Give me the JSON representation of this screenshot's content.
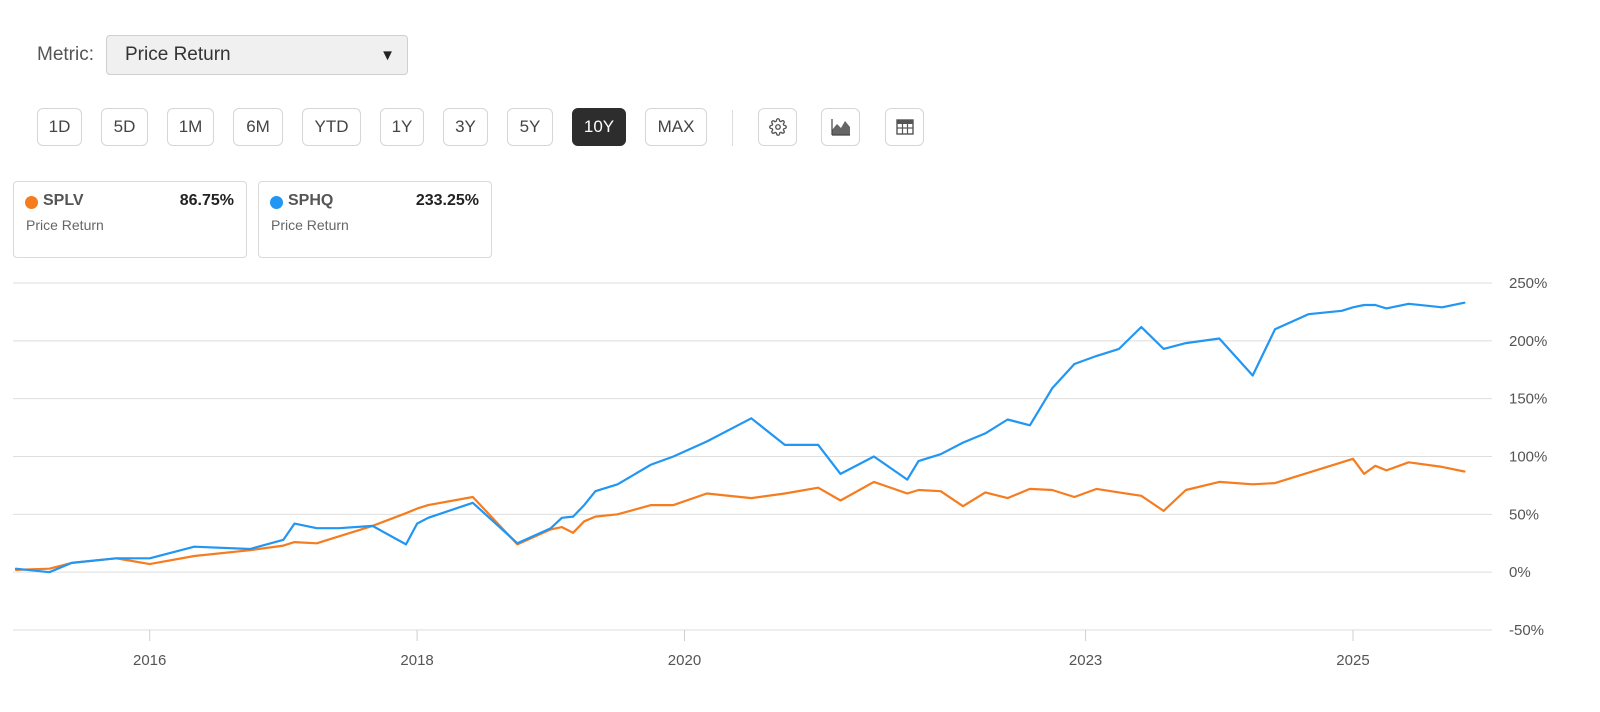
{
  "metric": {
    "label": "Metric:",
    "selected": "Price Return"
  },
  "ranges": [
    "1D",
    "5D",
    "1M",
    "6M",
    "YTD",
    "1Y",
    "3Y",
    "5Y",
    "10Y",
    "MAX"
  ],
  "active_range": "10Y",
  "tool_icons": [
    "gear-icon",
    "area-chart-icon",
    "table-icon"
  ],
  "cards": [
    {
      "ticker": "SPLV",
      "value": "86.75%",
      "metric": "Price Return",
      "color": "#f57c1f"
    },
    {
      "ticker": "SPHQ",
      "value": "233.25%",
      "metric": "Price Return",
      "color": "#2196f3"
    }
  ],
  "chart_data": {
    "type": "line",
    "title": "",
    "xlabel": "",
    "ylabel": "",
    "x_ticks": [
      "2016",
      "2018",
      "2020",
      "2023",
      "2025"
    ],
    "y_ticks": [
      "250%",
      "200%",
      "150%",
      "100%",
      "50%",
      "0%",
      "-50%"
    ],
    "ylim": [
      -50,
      250
    ],
    "grid": true,
    "x": [
      "2015-01",
      "2015-04",
      "2015-06",
      "2015-10",
      "2016-01",
      "2016-05",
      "2016-10",
      "2017-01",
      "2017-02",
      "2017-04",
      "2017-06",
      "2017-09",
      "2017-12",
      "2018-01",
      "2018-02",
      "2018-06",
      "2018-10",
      "2019-01",
      "2019-02",
      "2019-03",
      "2019-04",
      "2019-05",
      "2019-07",
      "2019-10",
      "2019-12",
      "2020-03",
      "2020-07",
      "2020-10",
      "2021-01",
      "2021-03",
      "2021-06",
      "2021-09",
      "2021-10",
      "2021-12",
      "2022-02",
      "2022-04",
      "2022-06",
      "2022-08",
      "2022-10",
      "2022-12",
      "2023-02",
      "2023-04",
      "2023-06",
      "2023-08",
      "2023-10",
      "2024-01",
      "2024-04",
      "2024-06",
      "2024-09",
      "2024-12",
      "2025-01",
      "2025-02",
      "2025-03",
      "2025-04",
      "2025-06",
      "2025-09",
      "2025-11"
    ],
    "series": [
      {
        "name": "SPLV",
        "color": "#f57c1f",
        "values": [
          2,
          3,
          8,
          12,
          7,
          14,
          19,
          23,
          26,
          25,
          31,
          40,
          51,
          55,
          58,
          65,
          24,
          37,
          39,
          34,
          44,
          48,
          50,
          58,
          58,
          68,
          64,
          68,
          73,
          62,
          78,
          68,
          71,
          70,
          57,
          69,
          64,
          72,
          71,
          65,
          72,
          69,
          66,
          53,
          71,
          78,
          76,
          77,
          86,
          95,
          98,
          85,
          92,
          88,
          95,
          91,
          87
        ]
      },
      {
        "name": "SPHQ",
        "color": "#2196f3",
        "values": [
          3,
          0,
          8,
          12,
          12,
          22,
          20,
          28,
          42,
          38,
          38,
          40,
          24,
          42,
          47,
          60,
          25,
          38,
          47,
          48,
          58,
          70,
          76,
          93,
          100,
          113,
          133,
          110,
          110,
          85,
          100,
          80,
          96,
          102,
          112,
          120,
          132,
          127,
          159,
          180,
          187,
          193,
          212,
          193,
          198,
          202,
          170,
          210,
          223,
          226,
          229,
          231,
          231,
          228,
          232,
          229,
          233
        ]
      }
    ]
  }
}
